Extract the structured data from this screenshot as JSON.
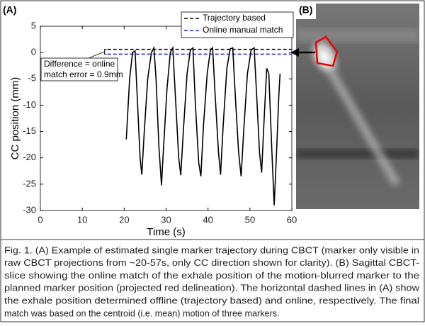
{
  "panel_a_label": "(A)",
  "panel_b_label": "(B)",
  "chart_data": {
    "type": "line",
    "xlabel": "Time (s)",
    "ylabel": "CC position (mm)",
    "xlim": [
      0,
      60
    ],
    "xticks": [
      0,
      10,
      20,
      30,
      40,
      50,
      60
    ],
    "ylim": [
      -30,
      5
    ],
    "yticks": [
      5,
      0,
      -5,
      -10,
      -15,
      -20,
      -25,
      -30
    ],
    "color": "#000000",
    "x": [
      20.5,
      21.3,
      22,
      22.6,
      23.2,
      23.8,
      24.2,
      24.8,
      25.6,
      26.5,
      27.1,
      27.6,
      28.3,
      28.9,
      29.4,
      30.2,
      31,
      31.6,
      32.2,
      33,
      33.5,
      34.1,
      35,
      35.8,
      36.4,
      37,
      37.8,
      38.3,
      38.9,
      39.8,
      40.6,
      41.1,
      41.7,
      42.5,
      43,
      43.6,
      44.5,
      45.3,
      45.9,
      46.5,
      47.3,
      47.9,
      48.5,
      49.4,
      50.3,
      51,
      51.6,
      52.3,
      52.8,
      53.3,
      54,
      54.5,
      55.2,
      55.8,
      56.3,
      56.9,
      57.2
    ],
    "values": [
      -16.5,
      -5,
      0,
      0.3,
      -10,
      -20,
      -23.2,
      -15,
      -5,
      0,
      0.9,
      -5,
      -18,
      -25.2,
      -18,
      -7,
      0,
      0.9,
      -8,
      -20,
      -23.3,
      -15,
      -4,
      0.5,
      0.9,
      -10,
      -21,
      -23.5,
      -14,
      -4,
      0.6,
      0.9,
      -8,
      -19,
      -23.2,
      -14,
      -3,
      0.7,
      0.9,
      -8,
      -19,
      -23.5,
      -15,
      -4,
      0.5,
      0.9,
      -8,
      -19,
      -22.8,
      -14,
      -3,
      -4,
      -18,
      -29,
      -20,
      -8,
      -4
    ],
    "reference_lines": [
      {
        "name": "Trajectory based",
        "color": "#000000",
        "value": 0.6,
        "xmin": 16
      },
      {
        "name": "Online manual match",
        "color": "#1a1aff",
        "value": -0.3,
        "xmin": 16
      }
    ],
    "annotation": [
      "Difference  = online",
      "match error = 0.9mm"
    ]
  },
  "caption": [
    "Fig. 1. (A) Example of estimated single marker trajectory during CBCT (marker only visible in",
    "raw CBCT projections from ~20-57s, only CC direction shown for clarity). (B) Sagittal CBCT-",
    "slice showing the online match of the exhale position of the motion-blurred marker to the",
    "planned marker position (projected red delineation).  The horizontal dashed  lines in (A) show",
    "the exhale position determined offline (trajectory based) and online, respectively. The final",
    "match was based on the centroid (i.e. mean) motion of three markers."
  ]
}
